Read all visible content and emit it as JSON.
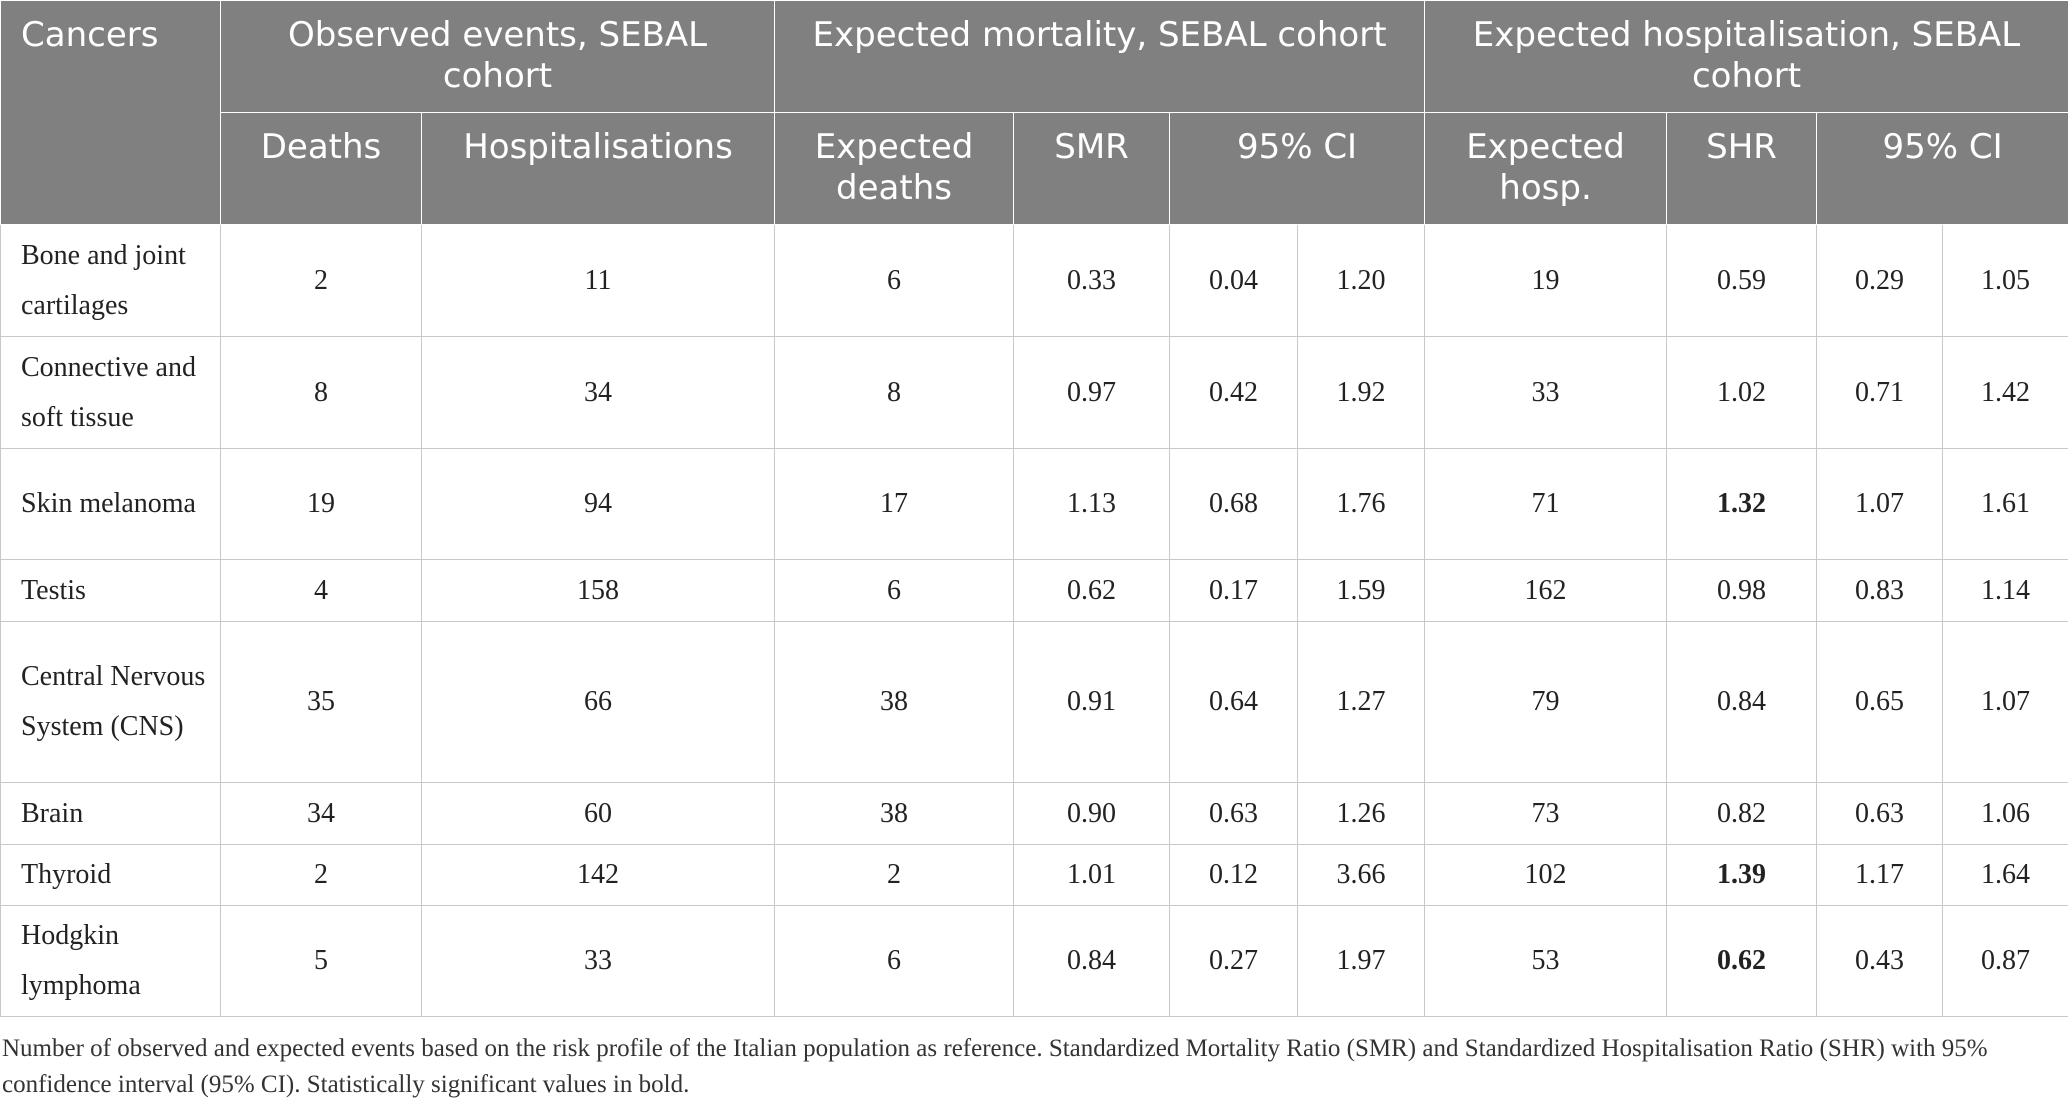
{
  "table": {
    "first_header": "Cancers",
    "column_groups": [
      {
        "label": "Observed events, SEBAL cohort",
        "columns": [
          {
            "label": "Deaths",
            "span": 1
          },
          {
            "label": "Hospitalisations",
            "span": 1
          }
        ]
      },
      {
        "label": "Expected mortality, SEBAL cohort",
        "columns": [
          {
            "label": "Expected deaths",
            "span": 1
          },
          {
            "label": "SMR",
            "span": 1
          },
          {
            "label": "95% CI",
            "span": 2
          }
        ]
      },
      {
        "label": "Expected hospitalisation, SEBAL cohort",
        "columns": [
          {
            "label": "Expected hosp.",
            "span": 1
          },
          {
            "label": "SHR",
            "span": 1
          },
          {
            "label": "95% CI",
            "span": 2
          }
        ]
      }
    ],
    "rows": [
      {
        "name": "Bone and joint cartilages",
        "values": [
          "2",
          "11",
          "6",
          "0.33",
          "0.04",
          "1.20",
          "19",
          "0.59",
          "0.29",
          "1.05"
        ]
      },
      {
        "name": "Connective and soft tissue",
        "values": [
          "8",
          "34",
          "8",
          "0.97",
          "0.42",
          "1.92",
          "33",
          "1.02",
          "0.71",
          "1.42"
        ]
      },
      {
        "name": "Skin melanoma",
        "values": [
          "19",
          "94",
          "17",
          "1.13",
          "0.68",
          "1.76",
          "71",
          "1.32",
          "1.07",
          "1.61"
        ],
        "bold_columns": [
          7
        ]
      },
      {
        "name": "Testis",
        "values": [
          "4",
          "158",
          "6",
          "0.62",
          "0.17",
          "1.59",
          "162",
          "0.98",
          "0.83",
          "1.14"
        ]
      },
      {
        "name": "Central Nervous System (CNS)",
        "values": [
          "35",
          "66",
          "38",
          "0.91",
          "0.64",
          "1.27",
          "79",
          "0.84",
          "0.65",
          "1.07"
        ]
      },
      {
        "name": "Brain",
        "values": [
          "34",
          "60",
          "38",
          "0.90",
          "0.63",
          "1.26",
          "73",
          "0.82",
          "0.63",
          "1.06"
        ]
      },
      {
        "name": "Thyroid",
        "values": [
          "2",
          "142",
          "2",
          "1.01",
          "0.12",
          "3.66",
          "102",
          "1.39",
          "1.17",
          "1.64"
        ],
        "bold_columns": [
          7
        ]
      },
      {
        "name": "Hodgkin lymphoma",
        "values": [
          "5",
          "33",
          "6",
          "0.84",
          "0.27",
          "1.97",
          "53",
          "0.62",
          "0.43",
          "0.87"
        ],
        "bold_columns": [
          7
        ]
      }
    ]
  },
  "footnote": "Number of observed and expected events based on the risk profile of the Italian population as reference. Standardized Mortality Ratio (SMR) and Standardized Hospitalisation Ratio (SHR) with 95% confidence interval (95% CI). Statistically significant values in bold."
}
